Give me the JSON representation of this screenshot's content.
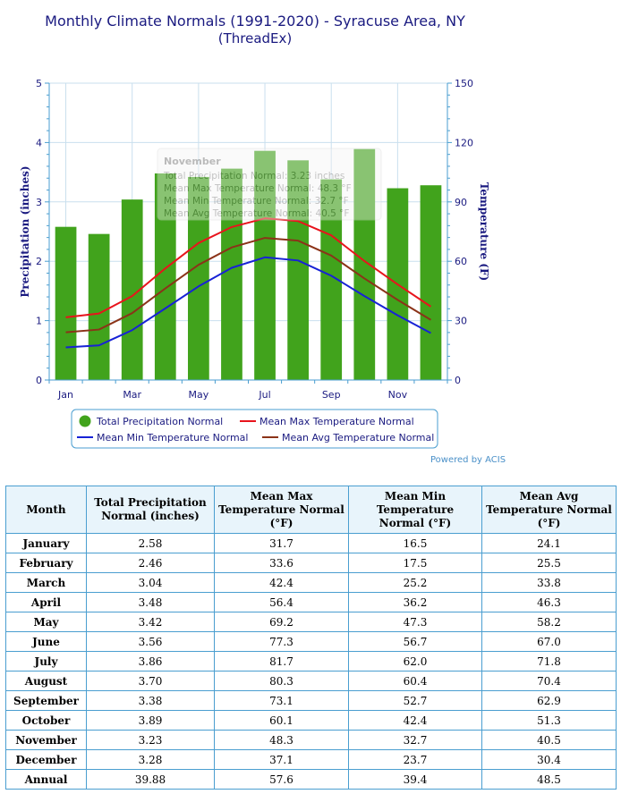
{
  "chart_data": {
    "type": "bar+line",
    "title": "Monthly Climate Normals (1991-2020) - Syracuse Area, NY",
    "subtitle": "(ThreadEx)",
    "categories": [
      "Jan",
      "Feb",
      "Mar",
      "Apr",
      "May",
      "Jun",
      "Jul",
      "Aug",
      "Sep",
      "Oct",
      "Nov",
      "Dec"
    ],
    "x_tick_labels": [
      "Jan",
      "Mar",
      "May",
      "Jul",
      "Sep",
      "Nov"
    ],
    "ylabel_left": "Precipitation (inches)",
    "ylabel_right": "Temperature (F)",
    "ylim_left": [
      0,
      5
    ],
    "ylim_right": [
      0,
      150
    ],
    "yticks_left": [
      "0",
      "1",
      "2",
      "3",
      "4",
      "5"
    ],
    "yticks_right": [
      "0",
      "30",
      "60",
      "90",
      "120",
      "150"
    ],
    "series": [
      {
        "name": "Total Precipitation Normal",
        "type": "bar",
        "axis": "left",
        "color": "#41a31c",
        "values": [
          2.58,
          2.46,
          3.04,
          3.48,
          3.42,
          3.56,
          3.86,
          3.7,
          3.38,
          3.89,
          3.23,
          3.28
        ]
      },
      {
        "name": "Mean Max Temperature Normal",
        "type": "line",
        "axis": "right",
        "color": "#e8141c",
        "values": [
          31.7,
          33.6,
          42.4,
          56.4,
          69.2,
          77.3,
          81.7,
          80.3,
          73.1,
          60.1,
          48.3,
          37.1
        ]
      },
      {
        "name": "Mean Min Temperature Normal",
        "type": "line",
        "axis": "right",
        "color": "#1722d6",
        "values": [
          16.5,
          17.5,
          25.2,
          36.2,
          47.3,
          56.7,
          62.0,
          60.4,
          52.7,
          42.4,
          32.7,
          23.7
        ]
      },
      {
        "name": "Mean Avg Temperature Normal",
        "type": "line",
        "axis": "right",
        "color": "#8b3318",
        "values": [
          24.1,
          25.5,
          33.8,
          46.3,
          58.2,
          67.0,
          71.8,
          70.4,
          62.9,
          51.3,
          40.5,
          30.4
        ]
      }
    ],
    "tooltip": {
      "title": "November",
      "lines": [
        "Total Precipitation Normal: 3.23 inches",
        "Mean Max Temperature Normal: 48.3 °F",
        "Mean Min Temperature Normal: 32.7 °F",
        "Mean Avg Temperature Normal: 40.5 °F"
      ]
    },
    "legend": "bottom",
    "grid": true
  },
  "credit": "Powered by ACIS",
  "table": {
    "headers": [
      "Month",
      "Total Precipitation Normal (inches)",
      "Mean Max Temperature Normal (°F)",
      "Mean Min Temperature Normal (°F)",
      "Mean Avg Temperature Normal (°F)"
    ],
    "rows": [
      [
        "January",
        "2.58",
        "31.7",
        "16.5",
        "24.1"
      ],
      [
        "February",
        "2.46",
        "33.6",
        "17.5",
        "25.5"
      ],
      [
        "March",
        "3.04",
        "42.4",
        "25.2",
        "33.8"
      ],
      [
        "April",
        "3.48",
        "56.4",
        "36.2",
        "46.3"
      ],
      [
        "May",
        "3.42",
        "69.2",
        "47.3",
        "58.2"
      ],
      [
        "June",
        "3.56",
        "77.3",
        "56.7",
        "67.0"
      ],
      [
        "July",
        "3.86",
        "81.7",
        "62.0",
        "71.8"
      ],
      [
        "August",
        "3.70",
        "80.3",
        "60.4",
        "70.4"
      ],
      [
        "September",
        "3.38",
        "73.1",
        "52.7",
        "62.9"
      ],
      [
        "October",
        "3.89",
        "60.1",
        "42.4",
        "51.3"
      ],
      [
        "November",
        "3.23",
        "48.3",
        "32.7",
        "40.5"
      ],
      [
        "December",
        "3.28",
        "37.1",
        "23.7",
        "30.4"
      ],
      [
        "Annual",
        "39.88",
        "57.6",
        "39.4",
        "48.5"
      ]
    ]
  }
}
